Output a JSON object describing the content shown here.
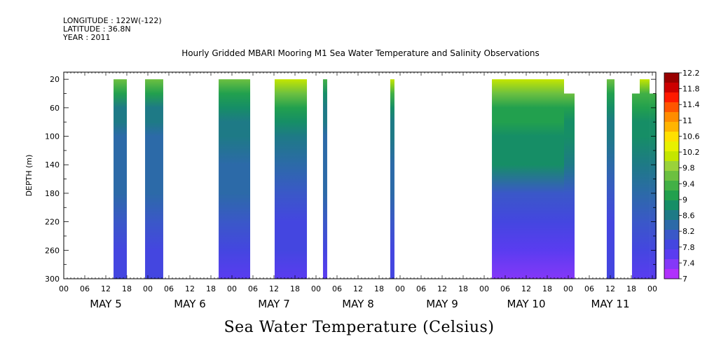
{
  "header": {
    "longitude": "LONGITUDE : 122W(-122)",
    "latitude": "LATITUDE : 36.8N",
    "year": "YEAR : 2011"
  },
  "chart_data": {
    "type": "heatmap",
    "title": "Hourly Gridded MBARI Mooring M1 Sea Water Temperature and Salinity Observations",
    "xlabel": "Sea Water Temperature (Celsius)",
    "ylabel": "DEPTH (m)",
    "ylim": [
      300,
      10
    ],
    "y_ticks": [
      "20",
      "60",
      "100",
      "140",
      "180",
      "220",
      "260",
      "300"
    ],
    "x_hour_ticks": [
      "00",
      "06",
      "12",
      "18",
      "00",
      "06",
      "12",
      "18",
      "00",
      "06",
      "12",
      "18",
      "00",
      "06",
      "12",
      "18",
      "00",
      "06",
      "12",
      "18",
      "00",
      "06",
      "12",
      "18",
      "00",
      "06",
      "12",
      "18",
      "00"
    ],
    "x_day_labels": [
      "MAY 5",
      "MAY 6",
      "MAY 7",
      "MAY 8",
      "MAY 9",
      "MAY 10",
      "MAY 11"
    ],
    "colorbar_ticks": [
      "12.2",
      "11.8",
      "11.4",
      "11",
      "10.6",
      "10.2",
      "9.8",
      "9.4",
      "9",
      "8.6",
      "8.2",
      "7.8",
      "7.4",
      "7"
    ],
    "colorbar_colors": [
      "#990000",
      "#cc0000",
      "#ff1a00",
      "#ff5500",
      "#ff8c00",
      "#ffb400",
      "#ffe000",
      "#e8f000",
      "#c4e600",
      "#9ad23a",
      "#6cc040",
      "#42b046",
      "#22a04e",
      "#168e66",
      "#1e7a86",
      "#2c6aa8",
      "#3a58c8",
      "#4446e0",
      "#5a3cf0",
      "#8438f8",
      "#b030fc"
    ],
    "color_range": [
      7,
      12.2
    ],
    "observations": [
      {
        "day_start": 4.592,
        "day_end": 4.75,
        "depth_top": 20,
        "temps": {
          "20": 9.6,
          "40": 9.0,
          "60": 8.6,
          "80": 8.5,
          "100": 8.4,
          "140": 8.4,
          "180": 8.3,
          "220": 8.1,
          "260": 7.9,
          "300": 7.8
        }
      },
      {
        "day_start": 4.967,
        "day_end": 5.183,
        "depth_top": 20,
        "temps": {
          "20": 9.5,
          "40": 9.0,
          "60": 8.6,
          "80": 8.5,
          "100": 8.4,
          "140": 8.3,
          "180": 8.2,
          "220": 8.1,
          "260": 7.9,
          "300": 7.8
        }
      },
      {
        "day_start": 5.842,
        "day_end": 6.217,
        "depth_top": 20,
        "temps": {
          "20": 9.7,
          "40": 9.2,
          "60": 8.8,
          "80": 8.6,
          "100": 8.5,
          "140": 8.4,
          "180": 8.3,
          "220": 8.1,
          "260": 7.8,
          "300": 7.5
        }
      },
      {
        "day_start": 6.508,
        "day_end": 6.892,
        "depth_top": 20,
        "temps": {
          "20": 10.1,
          "40": 9.6,
          "60": 9.1,
          "80": 8.8,
          "100": 8.6,
          "140": 8.2,
          "180": 8.0,
          "220": 7.8,
          "260": 7.7,
          "300": 7.6
        }
      },
      {
        "day_start": 7.083,
        "day_end": 7.133,
        "depth_top": 20,
        "temps": {
          "20": 9.4,
          "40": 8.9,
          "60": 8.6,
          "80": 8.5,
          "100": 8.4,
          "140": 8.3,
          "180": 8.2,
          "220": 8.0,
          "260": 7.8,
          "300": 7.6
        }
      },
      {
        "day_start": 7.883,
        "day_end": 7.933,
        "depth_top": 20,
        "temps": {
          "20": 10.0,
          "40": 9.3,
          "60": 8.8,
          "80": 8.6,
          "100": 8.5,
          "140": 8.4,
          "180": 8.3,
          "220": 8.1,
          "260": 7.9,
          "300": 7.7
        }
      },
      {
        "day_start": 9.092,
        "day_end": 9.95,
        "depth_top": 20,
        "temps": {
          "20": 10.0,
          "40": 9.6,
          "60": 9.2,
          "80": 9.0,
          "100": 8.9,
          "140": 8.7,
          "180": 8.1,
          "220": 7.9,
          "260": 7.5,
          "300": 7.3
        }
      },
      {
        "day_start": 9.95,
        "day_end": 10.075,
        "depth_top": 40,
        "temps": {
          "20": 9.8,
          "40": 9.5,
          "60": 9.1,
          "80": 8.9,
          "100": 8.8,
          "140": 8.6,
          "180": 8.0,
          "220": 7.8,
          "260": 7.5,
          "300": 7.3
        }
      },
      {
        "day_start": 10.458,
        "day_end": 10.55,
        "depth_top": 20,
        "temps": {
          "20": 9.6,
          "40": 9.1,
          "60": 8.8,
          "80": 8.6,
          "100": 8.5,
          "140": 8.3,
          "180": 8.1,
          "220": 7.9,
          "260": 7.8,
          "300": 7.7
        }
      },
      {
        "day_start": 10.758,
        "day_end": 10.85,
        "depth_top": 40,
        "temps": {
          "20": 9.6,
          "40": 9.3,
          "60": 9.0,
          "80": 8.8,
          "100": 8.7,
          "140": 8.6,
          "180": 8.3,
          "220": 8.0,
          "260": 7.8,
          "300": 7.6
        }
      },
      {
        "day_start": 10.85,
        "day_end": 10.967,
        "depth_top": 20,
        "temps": {
          "20": 10.0,
          "40": 9.4,
          "60": 9.0,
          "80": 8.8,
          "100": 8.7,
          "140": 8.6,
          "180": 8.3,
          "220": 8.0,
          "260": 7.8,
          "300": 7.6
        }
      },
      {
        "day_start": 10.967,
        "day_end": 11.05,
        "depth_top": 40,
        "temps": {
          "20": 9.6,
          "40": 9.3,
          "60": 9.0,
          "80": 8.8,
          "100": 8.7,
          "140": 8.6,
          "180": 8.3,
          "220": 8.0,
          "260": 7.8,
          "300": 7.6
        }
      }
    ]
  }
}
